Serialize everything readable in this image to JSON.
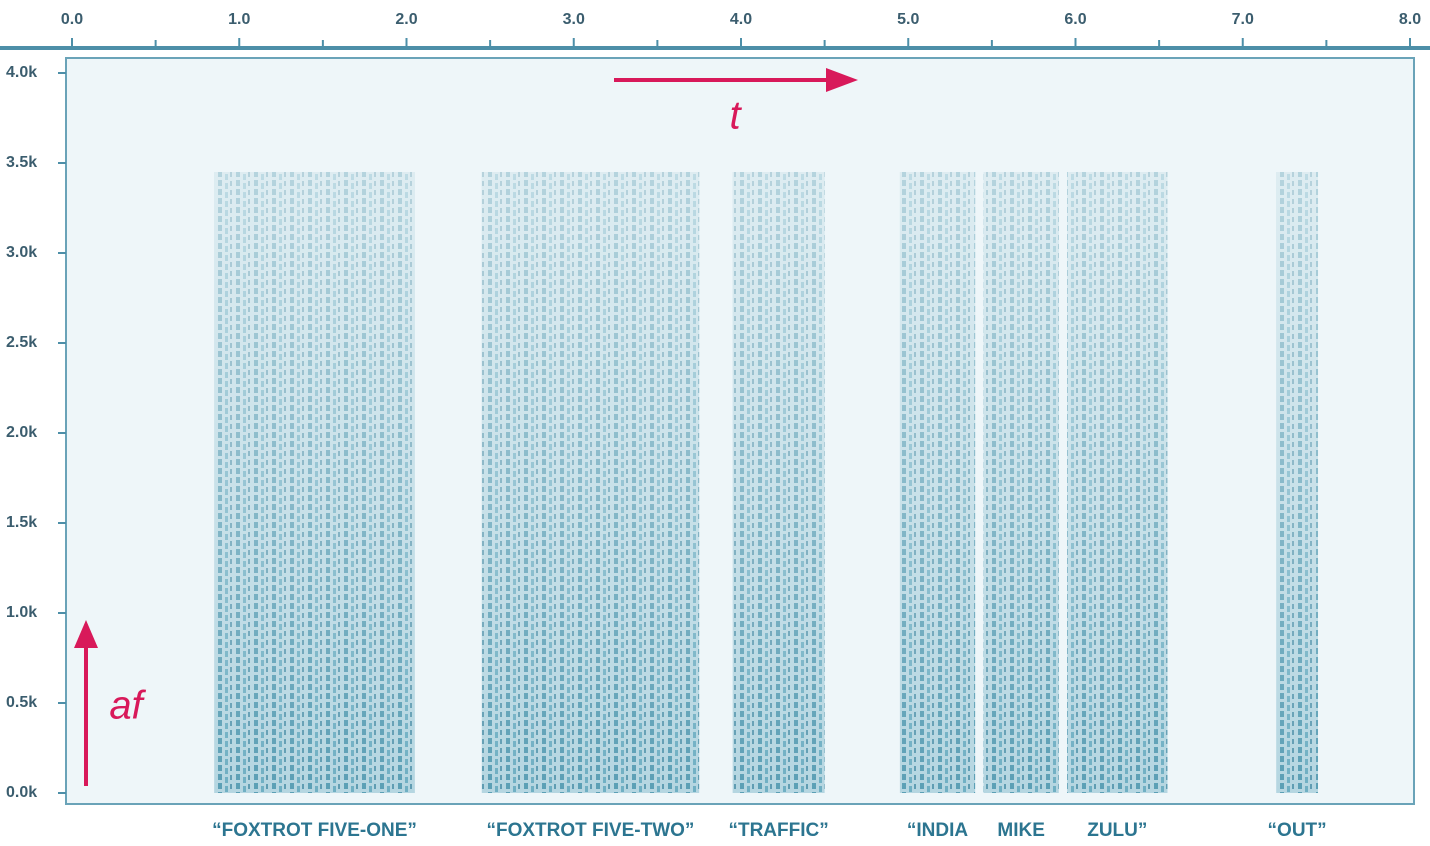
{
  "chart_data": {
    "type": "spectrogram",
    "xlim": [
      0,
      8
    ],
    "xticks": [
      {
        "value": 0,
        "label": "0.0"
      },
      {
        "value": 1,
        "label": "1.0"
      },
      {
        "value": 2,
        "label": "2.0"
      },
      {
        "value": 3,
        "label": "3.0"
      },
      {
        "value": 4,
        "label": "4.0"
      },
      {
        "value": 5,
        "label": "5.0"
      },
      {
        "value": 6,
        "label": "6.0"
      },
      {
        "value": 7,
        "label": "7.0"
      },
      {
        "value": 8,
        "label": "8.0"
      }
    ],
    "ylim": [
      0,
      4000
    ],
    "yticks": [
      {
        "value": 0,
        "label": "0.0k"
      },
      {
        "value": 500,
        "label": "0.5k"
      },
      {
        "value": 1000,
        "label": "1.0k"
      },
      {
        "value": 1500,
        "label": "1.5k"
      },
      {
        "value": 2000,
        "label": "2.0k"
      },
      {
        "value": 2500,
        "label": "2.5k"
      },
      {
        "value": 3000,
        "label": "3.0k"
      },
      {
        "value": 3500,
        "label": "3.5k"
      },
      {
        "value": 4000,
        "label": "4.0k"
      }
    ],
    "segments": [
      {
        "label": "“FOXTROT FIVE-ONE”",
        "start": 0.85,
        "end": 2.05
      },
      {
        "label": "“FOXTROT FIVE-TWO”",
        "start": 2.45,
        "end": 3.75
      },
      {
        "label": "“TRAFFIC”",
        "start": 3.95,
        "end": 4.5
      },
      {
        "label": "“INDIA",
        "start": 4.95,
        "end": 5.4
      },
      {
        "label": "MIKE",
        "start": 5.45,
        "end": 5.9
      },
      {
        "label": "ZULU”",
        "start": 5.95,
        "end": 6.55
      },
      {
        "label": "“OUT”",
        "start": 7.2,
        "end": 7.45
      }
    ],
    "annotations": {
      "time": "t",
      "frequency": "af"
    }
  }
}
